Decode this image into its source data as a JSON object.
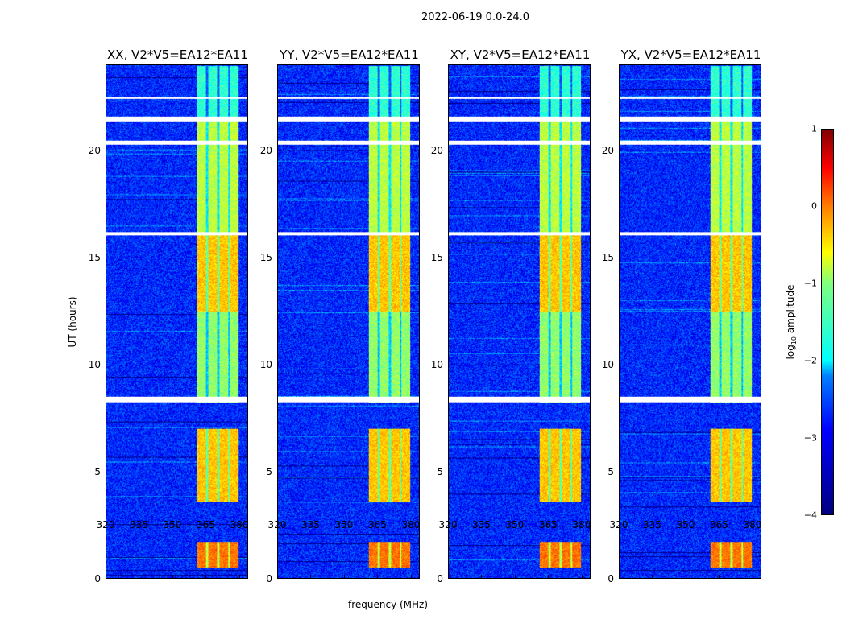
{
  "suptitle": "2022-06-19 0.0-24.0",
  "chart_data": {
    "type": "heatmap",
    "xlabel": "frequency (MHz)",
    "ylabel": "UT (hours)",
    "xlim": [
      320,
      384
    ],
    "ylim": [
      0,
      24
    ],
    "xticks": [
      "320",
      "335",
      "350",
      "365",
      "380"
    ],
    "yticks": [
      "0",
      "5",
      "10",
      "15",
      "20"
    ],
    "colorbar": {
      "label_prefix": "log",
      "label_sub": "10",
      "label_suffix": " amplitude",
      "range": [
        -4,
        1
      ],
      "ticks": [
        "1",
        "0",
        "−1",
        "−2",
        "−3",
        "−4"
      ],
      "colormap": "jet"
    },
    "panels": [
      {
        "title": "XX, V2*V5=EA12*EA11",
        "seed": 1
      },
      {
        "title": "YY, V2*V5=EA12*EA11",
        "seed": 2
      },
      {
        "title": "XY, V2*V5=EA12*EA11",
        "seed": 3
      },
      {
        "title": "YX, V2*V5=EA12*EA11",
        "seed": 4
      }
    ],
    "background_level": -3.2,
    "band_freq_range_MHz": [
      361,
      380
    ],
    "band_levels": [
      {
        "hours": [
          0.5,
          1.7
        ],
        "level": -0.2
      },
      {
        "hours": [
          3.6,
          7.0
        ],
        "level": -0.6
      },
      {
        "hours": [
          8.2,
          12.5
        ],
        "level": -1.4
      },
      {
        "hours": [
          12.5,
          16.2
        ],
        "level": -0.6
      },
      {
        "hours": [
          16.2,
          21.6
        ],
        "level": -1.2
      },
      {
        "hours": [
          21.6,
          24.0
        ],
        "level": -1.9
      }
    ],
    "flagged_hours": [
      [
        8.25,
        8.5
      ],
      [
        16.05,
        16.2
      ],
      [
        20.3,
        20.5
      ],
      [
        21.4,
        21.6
      ],
      [
        22.45,
        22.5
      ]
    ]
  }
}
